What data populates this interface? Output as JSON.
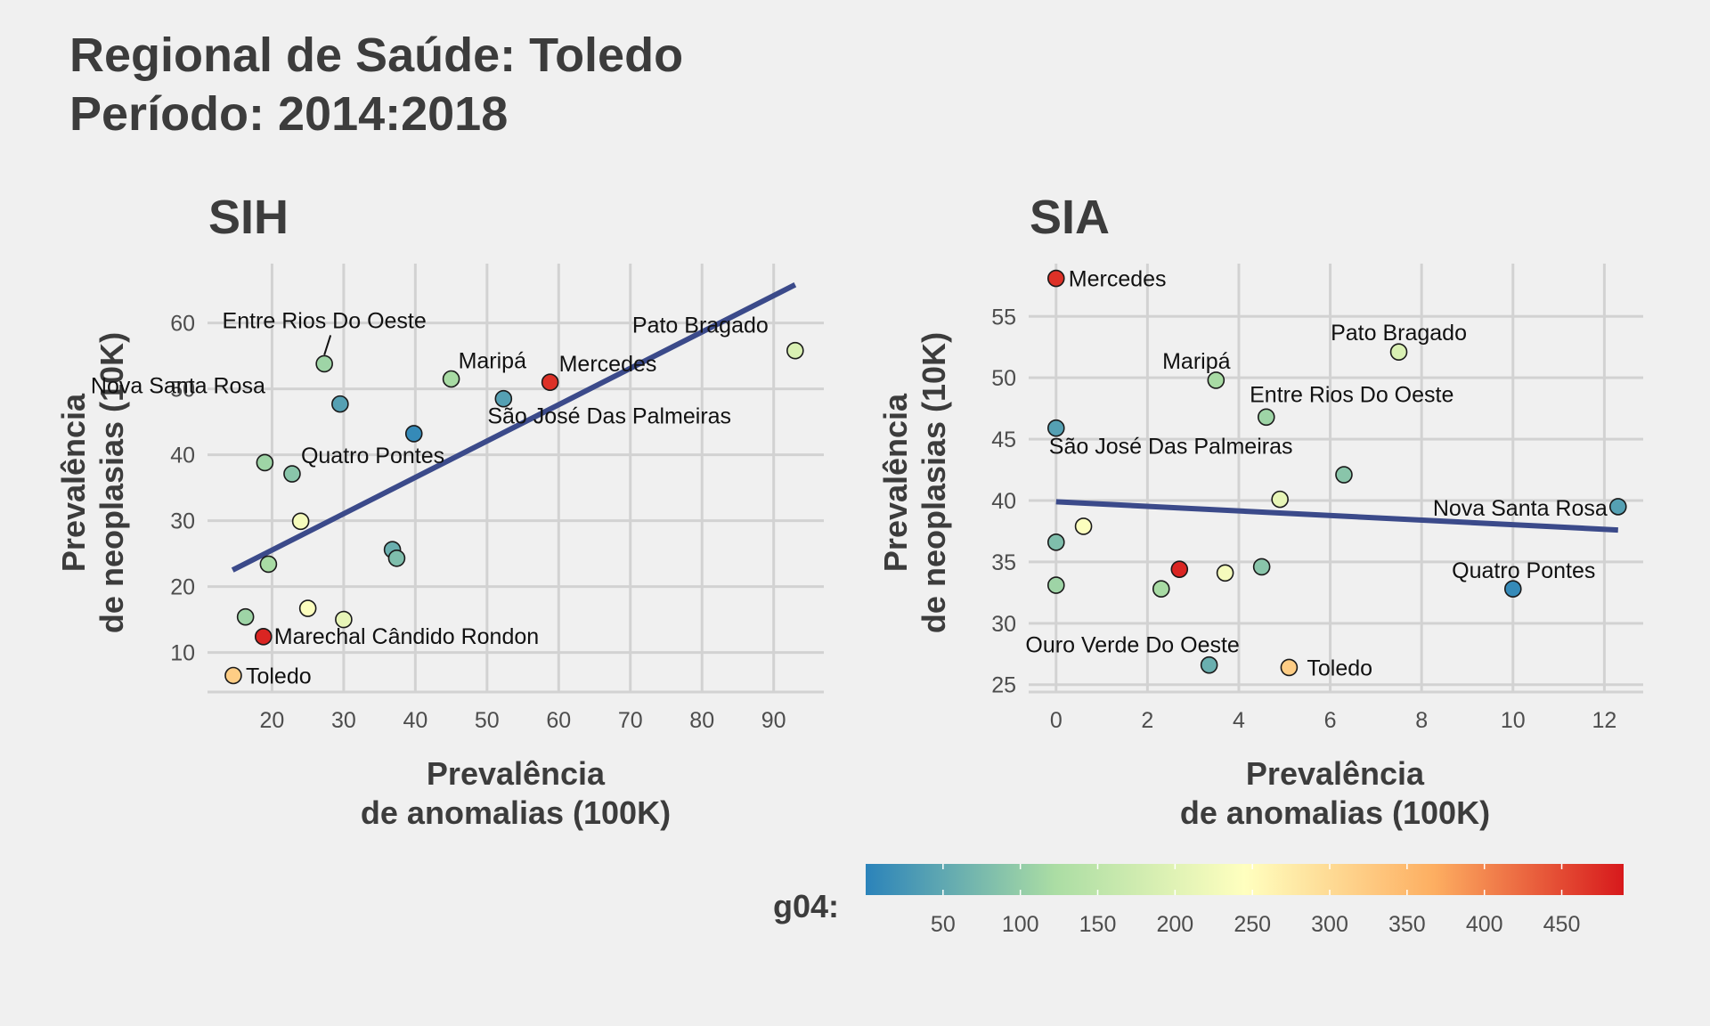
{
  "title_line1": "Regional de Saúde: Toledo",
  "title_line2": "Período: 2014:2018",
  "colors": {
    "background": "#f0f0f0",
    "grid": "#d2d2d2",
    "trend": "#3b4a8a",
    "text": "#3c3c3c"
  },
  "chart_data": [
    {
      "type": "scatter",
      "title": "SIH",
      "xlabel": [
        "Prevalência",
        "de anomalias (100K)"
      ],
      "ylabel": [
        "Prevalência",
        "de neoplasias (10K)"
      ],
      "xlim": [
        11,
        97
      ],
      "ylim": [
        4,
        69
      ],
      "xticks": [
        20,
        30,
        40,
        50,
        60,
        70,
        80,
        90
      ],
      "yticks": [
        10,
        20,
        30,
        40,
        50,
        60
      ],
      "trend": {
        "x": [
          14.5,
          93
        ],
        "y": [
          22.5,
          65.8
        ]
      },
      "points": [
        {
          "x": 27.3,
          "y": 53.8,
          "g04": 110,
          "label": "Entre Rios Do Oeste"
        },
        {
          "x": 29.5,
          "y": 47.7,
          "g04": 40,
          "label": "Nova Santa Rosa"
        },
        {
          "x": 45.0,
          "y": 51.5,
          "g04": 120,
          "label": "Maripá"
        },
        {
          "x": 52.3,
          "y": 48.5,
          "g04": 40,
          "label": "São José Das Palmeiras"
        },
        {
          "x": 58.8,
          "y": 51.0,
          "g04": 470,
          "label": "Mercedes"
        },
        {
          "x": 93.0,
          "y": 55.8,
          "g04": 190,
          "label": "Pato Bragado"
        },
        {
          "x": 39.8,
          "y": 43.2,
          "g04": 10,
          "label": ""
        },
        {
          "x": 19.0,
          "y": 38.8,
          "g04": 110,
          "label": ""
        },
        {
          "x": 22.8,
          "y": 37.1,
          "g04": 90,
          "label": "Quatro Pontes"
        },
        {
          "x": 24.0,
          "y": 29.9,
          "g04": 230,
          "label": ""
        },
        {
          "x": 19.5,
          "y": 23.4,
          "g04": 120,
          "label": ""
        },
        {
          "x": 36.8,
          "y": 25.6,
          "g04": 60,
          "label": ""
        },
        {
          "x": 37.4,
          "y": 24.3,
          "g04": 80,
          "label": ""
        },
        {
          "x": 25.0,
          "y": 16.7,
          "g04": 240,
          "label": ""
        },
        {
          "x": 30.0,
          "y": 15.0,
          "g04": 210,
          "label": ""
        },
        {
          "x": 16.3,
          "y": 15.4,
          "g04": 110,
          "label": ""
        },
        {
          "x": 18.8,
          "y": 12.4,
          "g04": 480,
          "label": "Marechal Cândido Rondon"
        },
        {
          "x": 14.6,
          "y": 6.5,
          "g04": 320,
          "label": "Toledo"
        }
      ]
    },
    {
      "type": "scatter",
      "title": "SIA",
      "xlabel": [
        "Prevalência",
        "de anomalias (100K)"
      ],
      "ylabel": [
        "Prevalência",
        "de neoplasias (10K)"
      ],
      "xlim": [
        -0.6,
        12.85
      ],
      "ylim": [
        24.4,
        59.3
      ],
      "xticks": [
        0,
        2,
        4,
        6,
        8,
        10,
        12
      ],
      "yticks": [
        25,
        30,
        35,
        40,
        45,
        50,
        55
      ],
      "trend": {
        "x": [
          0,
          12.3
        ],
        "y": [
          39.9,
          37.6
        ]
      },
      "points": [
        {
          "x": 0.0,
          "y": 58.1,
          "g04": 470,
          "label": "Mercedes"
        },
        {
          "x": 7.5,
          "y": 52.1,
          "g04": 190,
          "label": "Pato Bragado"
        },
        {
          "x": 3.5,
          "y": 49.8,
          "g04": 120,
          "label": "Maripá"
        },
        {
          "x": 4.6,
          "y": 46.8,
          "g04": 110,
          "label": "Entre Rios Do Oeste"
        },
        {
          "x": 0.0,
          "y": 45.9,
          "g04": 40,
          "label": "São José Das Palmeiras"
        },
        {
          "x": 6.3,
          "y": 42.1,
          "g04": 90,
          "label": ""
        },
        {
          "x": 4.9,
          "y": 40.1,
          "g04": 210,
          "label": ""
        },
        {
          "x": 12.3,
          "y": 39.5,
          "g04": 40,
          "label": "Nova Santa Rosa"
        },
        {
          "x": 0.6,
          "y": 37.9,
          "g04": 240,
          "label": ""
        },
        {
          "x": 0.0,
          "y": 36.6,
          "g04": 80,
          "label": ""
        },
        {
          "x": 2.7,
          "y": 34.4,
          "g04": 480,
          "label": ""
        },
        {
          "x": 3.7,
          "y": 34.1,
          "g04": 230,
          "label": ""
        },
        {
          "x": 4.5,
          "y": 34.6,
          "g04": 90,
          "label": ""
        },
        {
          "x": 0.0,
          "y": 33.1,
          "g04": 110,
          "label": ""
        },
        {
          "x": 2.3,
          "y": 32.8,
          "g04": 120,
          "label": ""
        },
        {
          "x": 10.0,
          "y": 32.8,
          "g04": 10,
          "label": "Quatro Pontes"
        },
        {
          "x": 3.35,
          "y": 26.6,
          "g04": 60,
          "label": "Ouro Verde Do Oeste"
        },
        {
          "x": 5.1,
          "y": 26.4,
          "g04": 320,
          "label": "Toledo"
        }
      ]
    }
  ],
  "legend": {
    "title": "g04:",
    "min": 0,
    "max": 490,
    "ticks": [
      50,
      100,
      150,
      200,
      250,
      300,
      350,
      400,
      450
    ],
    "palette": [
      "#2b83ba",
      "#abdda4",
      "#ffffbf",
      "#fdae61",
      "#d7191c"
    ]
  }
}
